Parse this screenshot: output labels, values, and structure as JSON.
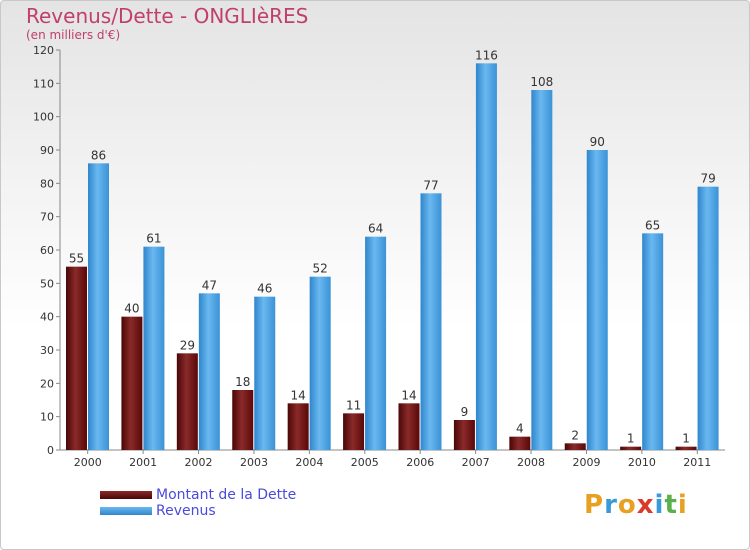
{
  "chart_data": {
    "type": "bar",
    "title": "Revenus/Dette - ONGLIèRES",
    "subtitle": "(en milliers d'€)",
    "categories": [
      "2000",
      "2001",
      "2002",
      "2003",
      "2004",
      "2005",
      "2006",
      "2007",
      "2008",
      "2009",
      "2010",
      "2011"
    ],
    "series": [
      {
        "name": "Montant de la Dette",
        "color": "#6b0d0d",
        "values": [
          55,
          40,
          29,
          18,
          14,
          11,
          14,
          9,
          4,
          2,
          1,
          1
        ]
      },
      {
        "name": "Revenus",
        "color": "#4aa3e8",
        "values": [
          86,
          61,
          47,
          46,
          52,
          64,
          77,
          116,
          108,
          90,
          65,
          79
        ]
      }
    ],
    "ylim": [
      0,
      120
    ],
    "yticks": [
      0,
      10,
      20,
      30,
      40,
      50,
      60,
      70,
      80,
      90,
      100,
      110,
      120
    ],
    "grid": false,
    "legend_position": "bottom-left"
  },
  "logo": {
    "letters": [
      "P",
      "r",
      "o",
      "x",
      "i",
      "t",
      "i"
    ],
    "colors": [
      "#e8a020",
      "#3a9ad9",
      "#e8a020",
      "#d93a2a",
      "#3a9ad9",
      "#5ab04a",
      "#e8a020"
    ]
  }
}
